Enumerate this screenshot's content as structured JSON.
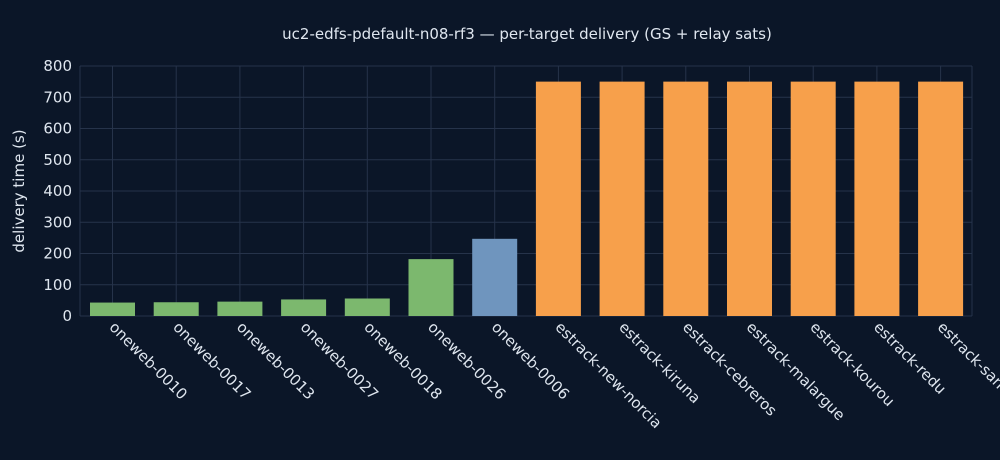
{
  "chart_data": {
    "type": "bar",
    "title": "uc2-edfs-pdefault-n08-rf3 — per-target delivery (GS + relay sats)",
    "xlabel": "",
    "ylabel": "delivery time (s)",
    "ylim": [
      0,
      800
    ],
    "yticks": [
      0,
      100,
      200,
      300,
      400,
      500,
      600,
      700,
      800
    ],
    "grid": true,
    "categories": [
      "oneweb-0010",
      "oneweb-0017",
      "oneweb-0013",
      "oneweb-0027",
      "oneweb-0018",
      "oneweb-0026",
      "oneweb-0006",
      "estrack-new-norcia",
      "estrack-kiruna",
      "estrack-cebreros",
      "estrack-malargue",
      "estrack-kourou",
      "estrack-redu",
      "estrack-santa-maria"
    ],
    "values": [
      43,
      44,
      46,
      53,
      56,
      182,
      247,
      750,
      750,
      750,
      750,
      750,
      750,
      750
    ],
    "bar_colors": [
      "#7cb86e",
      "#7cb86e",
      "#7cb86e",
      "#7cb86e",
      "#7cb86e",
      "#7cb86e",
      "#6f95be",
      "#f7a04b",
      "#f7a04b",
      "#f7a04b",
      "#f7a04b",
      "#f7a04b",
      "#f7a04b",
      "#f7a04b"
    ],
    "colors": {
      "background": "#0b1628",
      "grid": "#26334a",
      "text": "#dfe6ef"
    }
  }
}
